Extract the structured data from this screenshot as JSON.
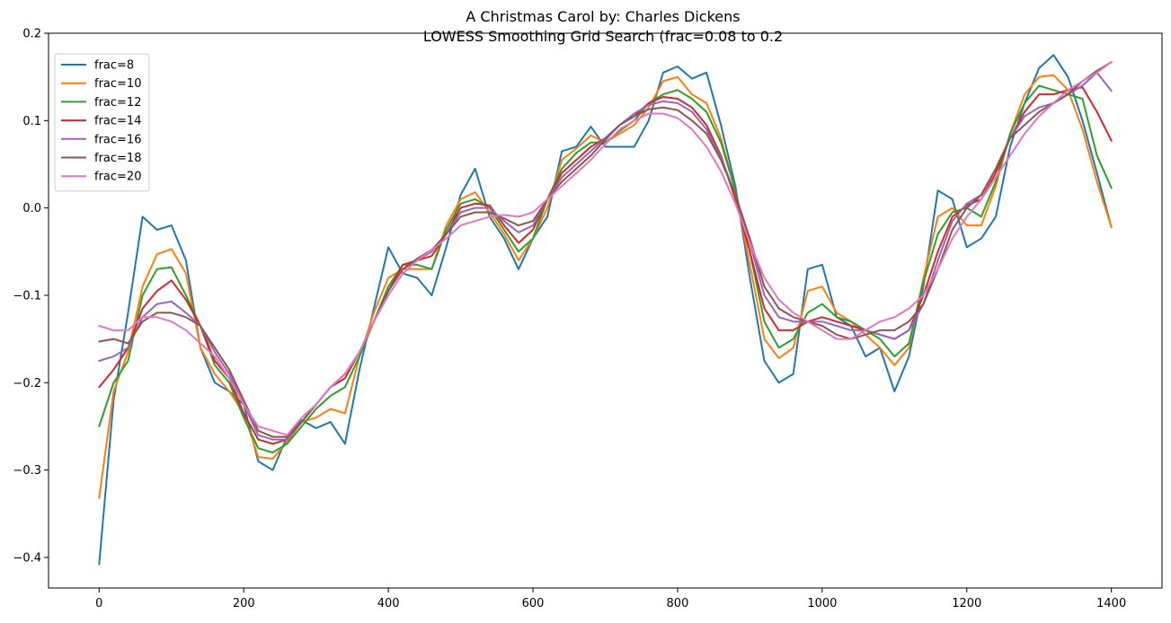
{
  "chart_data": {
    "type": "line",
    "title": "A Christmas Carol by: Charles Dickens",
    "subtitle": "LOWESS Smoothing Grid Search (frac=0.08 to 0.2",
    "xlabel": "",
    "ylabel": "",
    "xlim": [
      -70,
      1470
    ],
    "ylim": [
      -0.435,
      0.2
    ],
    "xticks": [
      0,
      200,
      400,
      600,
      800,
      1000,
      1200,
      1400
    ],
    "yticks": [
      -0.4,
      -0.3,
      -0.2,
      -0.1,
      0.0,
      0.1,
      0.2
    ],
    "ytick_labels": [
      "−0.4",
      "−0.3",
      "−0.2",
      "−0.1",
      "0.0",
      "0.1",
      "0.2"
    ],
    "grid": false,
    "legend_position": "top-left",
    "x": [
      0,
      20,
      40,
      60,
      80,
      100,
      120,
      140,
      160,
      180,
      200,
      220,
      240,
      260,
      280,
      300,
      320,
      340,
      360,
      380,
      400,
      420,
      440,
      460,
      480,
      500,
      520,
      540,
      560,
      580,
      600,
      620,
      640,
      660,
      680,
      700,
      720,
      740,
      760,
      780,
      800,
      820,
      840,
      860,
      880,
      900,
      920,
      940,
      960,
      980,
      1000,
      1020,
      1040,
      1060,
      1080,
      1100,
      1120,
      1140,
      1160,
      1180,
      1200,
      1220,
      1240,
      1260,
      1280,
      1300,
      1320,
      1340,
      1360,
      1380,
      1400
    ],
    "series": [
      {
        "name": "frac=8",
        "color": "#1f77b4",
        "values": [
          -0.408,
          -0.22,
          -0.12,
          -0.01,
          -0.025,
          -0.02,
          -0.06,
          -0.16,
          -0.2,
          -0.21,
          -0.225,
          -0.29,
          -0.3,
          -0.262,
          -0.243,
          -0.252,
          -0.245,
          -0.27,
          -0.185,
          -0.115,
          -0.045,
          -0.075,
          -0.08,
          -0.1,
          -0.045,
          0.015,
          0.045,
          -0.01,
          -0.035,
          -0.07,
          -0.035,
          -0.01,
          0.065,
          0.07,
          0.093,
          0.07,
          0.07,
          0.07,
          0.1,
          0.155,
          0.162,
          0.148,
          0.155,
          0.095,
          0.025,
          -0.08,
          -0.175,
          -0.2,
          -0.19,
          -0.07,
          -0.065,
          -0.125,
          -0.135,
          -0.17,
          -0.16,
          -0.21,
          -0.17,
          -0.09,
          0.02,
          0.01,
          -0.045,
          -0.035,
          -0.01,
          0.07,
          0.12,
          0.16,
          0.175,
          0.15,
          0.1,
          0.04,
          -0.022
        ]
      },
      {
        "name": "frac=10",
        "color": "#ff7f0e",
        "values": [
          -0.332,
          -0.21,
          -0.165,
          -0.09,
          -0.053,
          -0.047,
          -0.075,
          -0.16,
          -0.19,
          -0.21,
          -0.235,
          -0.285,
          -0.287,
          -0.268,
          -0.245,
          -0.24,
          -0.23,
          -0.235,
          -0.17,
          -0.12,
          -0.08,
          -0.07,
          -0.07,
          -0.07,
          -0.02,
          0.01,
          0.018,
          -0.005,
          -0.03,
          -0.06,
          -0.035,
          0.0,
          0.055,
          0.068,
          0.083,
          0.075,
          0.085,
          0.095,
          0.115,
          0.145,
          0.15,
          0.13,
          0.12,
          0.08,
          0.02,
          -0.065,
          -0.15,
          -0.172,
          -0.16,
          -0.095,
          -0.09,
          -0.12,
          -0.13,
          -0.145,
          -0.16,
          -0.18,
          -0.16,
          -0.08,
          -0.01,
          0.0,
          -0.02,
          -0.02,
          0.025,
          0.085,
          0.13,
          0.15,
          0.152,
          0.135,
          0.09,
          0.03,
          -0.022
        ]
      },
      {
        "name": "frac=12",
        "color": "#2ca02c",
        "values": [
          -0.25,
          -0.2,
          -0.175,
          -0.1,
          -0.07,
          -0.068,
          -0.1,
          -0.135,
          -0.18,
          -0.2,
          -0.24,
          -0.275,
          -0.28,
          -0.27,
          -0.25,
          -0.23,
          -0.215,
          -0.205,
          -0.17,
          -0.13,
          -0.09,
          -0.065,
          -0.065,
          -0.07,
          -0.025,
          0.005,
          0.01,
          0.0,
          -0.025,
          -0.05,
          -0.035,
          0.01,
          0.045,
          0.063,
          0.075,
          0.075,
          0.088,
          0.1,
          0.12,
          0.13,
          0.135,
          0.125,
          0.11,
          0.075,
          0.02,
          -0.05,
          -0.13,
          -0.16,
          -0.15,
          -0.12,
          -0.11,
          -0.125,
          -0.13,
          -0.14,
          -0.15,
          -0.17,
          -0.155,
          -0.085,
          -0.03,
          -0.005,
          0.0,
          -0.01,
          0.03,
          0.085,
          0.12,
          0.14,
          0.135,
          0.13,
          0.125,
          0.06,
          0.023
        ]
      },
      {
        "name": "frac=14",
        "color": "#d62728",
        "values": [
          -0.205,
          -0.185,
          -0.16,
          -0.115,
          -0.095,
          -0.083,
          -0.105,
          -0.135,
          -0.175,
          -0.195,
          -0.235,
          -0.265,
          -0.27,
          -0.265,
          -0.245,
          -0.225,
          -0.205,
          -0.195,
          -0.165,
          -0.13,
          -0.095,
          -0.065,
          -0.06,
          -0.055,
          -0.03,
          0.0,
          0.005,
          0.003,
          -0.02,
          -0.04,
          -0.025,
          0.01,
          0.04,
          0.055,
          0.07,
          0.08,
          0.095,
          0.105,
          0.12,
          0.127,
          0.125,
          0.115,
          0.095,
          0.06,
          0.01,
          -0.05,
          -0.115,
          -0.14,
          -0.14,
          -0.13,
          -0.125,
          -0.13,
          -0.135,
          -0.14,
          -0.145,
          -0.15,
          -0.14,
          -0.1,
          -0.05,
          -0.01,
          0.003,
          0.01,
          0.04,
          0.08,
          0.11,
          0.13,
          0.13,
          0.135,
          0.138,
          0.11,
          0.077
        ]
      },
      {
        "name": "frac=16",
        "color": "#9467bd",
        "values": [
          -0.175,
          -0.17,
          -0.16,
          -0.125,
          -0.11,
          -0.107,
          -0.12,
          -0.135,
          -0.165,
          -0.19,
          -0.225,
          -0.26,
          -0.265,
          -0.265,
          -0.245,
          -0.225,
          -0.205,
          -0.19,
          -0.165,
          -0.13,
          -0.095,
          -0.07,
          -0.06,
          -0.05,
          -0.03,
          -0.005,
          0.0,
          0.0,
          -0.015,
          -0.028,
          -0.02,
          0.01,
          0.035,
          0.05,
          0.065,
          0.08,
          0.095,
          0.108,
          0.118,
          0.122,
          0.12,
          0.11,
          0.09,
          0.058,
          0.015,
          -0.04,
          -0.1,
          -0.125,
          -0.13,
          -0.13,
          -0.13,
          -0.135,
          -0.14,
          -0.14,
          -0.145,
          -0.15,
          -0.14,
          -0.11,
          -0.06,
          -0.015,
          0.005,
          0.015,
          0.045,
          0.08,
          0.105,
          0.115,
          0.12,
          0.13,
          0.14,
          0.155,
          0.134
        ]
      },
      {
        "name": "frac=18",
        "color": "#8c564b",
        "values": [
          -0.153,
          -0.15,
          -0.155,
          -0.13,
          -0.12,
          -0.12,
          -0.125,
          -0.135,
          -0.16,
          -0.185,
          -0.22,
          -0.255,
          -0.262,
          -0.262,
          -0.245,
          -0.225,
          -0.205,
          -0.19,
          -0.165,
          -0.13,
          -0.095,
          -0.07,
          -0.058,
          -0.048,
          -0.03,
          -0.01,
          -0.005,
          -0.005,
          -0.012,
          -0.02,
          -0.015,
          0.01,
          0.03,
          0.045,
          0.06,
          0.078,
          0.095,
          0.105,
          0.113,
          0.115,
          0.112,
          0.1,
          0.085,
          0.055,
          0.015,
          -0.035,
          -0.09,
          -0.115,
          -0.125,
          -0.13,
          -0.135,
          -0.145,
          -0.15,
          -0.145,
          -0.14,
          -0.14,
          -0.13,
          -0.11,
          -0.07,
          -0.025,
          0.0,
          0.015,
          0.045,
          0.08,
          0.095,
          0.11,
          0.12,
          0.13,
          0.145,
          0.157,
          0.167
        ]
      },
      {
        "name": "frac=20",
        "color": "#e377c2",
        "values": [
          -0.135,
          -0.14,
          -0.14,
          -0.125,
          -0.125,
          -0.13,
          -0.14,
          -0.155,
          -0.17,
          -0.195,
          -0.225,
          -0.25,
          -0.255,
          -0.26,
          -0.24,
          -0.225,
          -0.205,
          -0.19,
          -0.165,
          -0.13,
          -0.1,
          -0.075,
          -0.06,
          -0.048,
          -0.035,
          -0.02,
          -0.015,
          -0.01,
          -0.008,
          -0.01,
          -0.005,
          0.01,
          0.025,
          0.04,
          0.055,
          0.073,
          0.09,
          0.1,
          0.108,
          0.108,
          0.103,
          0.09,
          0.07,
          0.042,
          0.005,
          -0.04,
          -0.08,
          -0.105,
          -0.12,
          -0.13,
          -0.14,
          -0.15,
          -0.15,
          -0.14,
          -0.13,
          -0.125,
          -0.115,
          -0.1,
          -0.07,
          -0.035,
          -0.01,
          0.01,
          0.035,
          0.06,
          0.085,
          0.105,
          0.12,
          0.135,
          0.145,
          0.155,
          0.167
        ]
      }
    ]
  }
}
